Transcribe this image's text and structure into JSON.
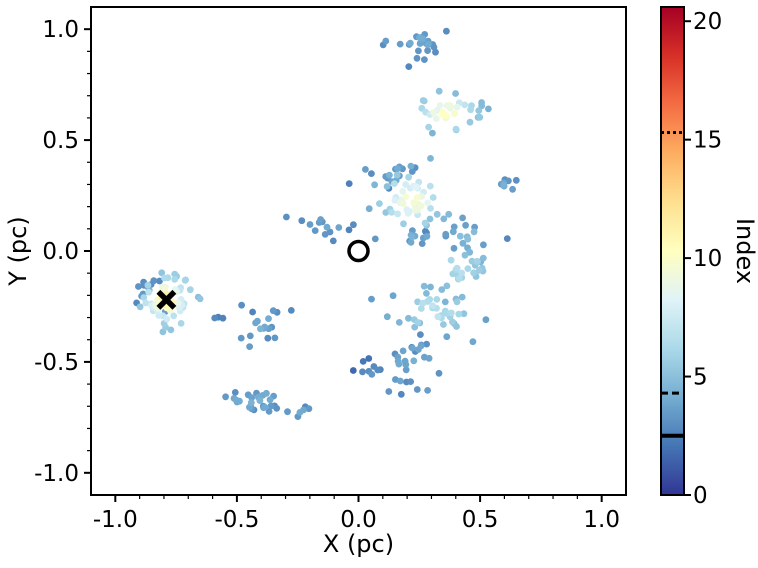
{
  "chart_data": {
    "type": "scatter",
    "xlabel": "X (pc)",
    "ylabel": "Y (pc)",
    "xlim": [
      -1.1,
      1.1
    ],
    "ylim": [
      -1.1,
      1.1
    ],
    "xticks": [
      -1.0,
      -0.5,
      0.0,
      0.5,
      1.0
    ],
    "xtick_labels": [
      "-1.0",
      "-0.5",
      "0.0",
      "0.5",
      "1.0"
    ],
    "yticks": [
      -1.0,
      -0.5,
      0.0,
      0.5,
      1.0
    ],
    "ytick_labels": [
      "-1.0",
      "-0.5",
      "0.0",
      "0.5",
      "1.0"
    ],
    "grid": false,
    "colorbar": {
      "label": "Index",
      "range": [
        0,
        20.6
      ],
      "ticks": [
        0,
        5,
        10,
        15,
        20
      ],
      "tick_labels": [
        "0",
        "5",
        "10",
        "15",
        "20"
      ],
      "colormap": "RdYlBu_r",
      "colors": [
        "#313695",
        "#4575b4",
        "#74add1",
        "#abd9e9",
        "#e0f3f8",
        "#ffffbf",
        "#fee090",
        "#fdae61",
        "#f46d43",
        "#d73027",
        "#a50026"
      ],
      "reference_lines": [
        {
          "value": 2.5,
          "style": "solid"
        },
        {
          "value": 4.3,
          "style": "dashed"
        },
        {
          "value": 15.3,
          "style": "dotted"
        }
      ]
    },
    "markers": [
      {
        "name": "circle",
        "x": 0.0,
        "y": 0.0,
        "shape": "open-circle"
      },
      {
        "name": "cross",
        "x": -0.79,
        "y": -0.22,
        "shape": "x"
      }
    ],
    "clusters": [
      {
        "cx": -0.79,
        "cy": -0.22,
        "rx": 0.07,
        "ry": 0.08,
        "n": 70,
        "peak": 11,
        "base": 5
      },
      {
        "cx": -0.87,
        "cy": -0.19,
        "rx": 0.05,
        "ry": 0.05,
        "n": 12,
        "peak": 4,
        "base": 3
      },
      {
        "cx": -0.4,
        "cy": -0.34,
        "rx": 0.07,
        "ry": 0.05,
        "n": 18,
        "peak": 4,
        "base": 3
      },
      {
        "cx": -0.42,
        "cy": -0.67,
        "rx": 0.1,
        "ry": 0.05,
        "n": 28,
        "peak": 4,
        "base": 3
      },
      {
        "cx": -0.24,
        "cy": -0.73,
        "rx": 0.04,
        "ry": 0.02,
        "n": 5,
        "peak": 4,
        "base": 3
      },
      {
        "cx": -0.58,
        "cy": -0.3,
        "rx": 0.02,
        "ry": 0.02,
        "n": 3,
        "peak": 3,
        "base": 2
      },
      {
        "cx": -0.14,
        "cy": 0.11,
        "rx": 0.06,
        "ry": 0.05,
        "n": 14,
        "peak": 4,
        "base": 3
      },
      {
        "cx": 0.22,
        "cy": 0.23,
        "rx": 0.1,
        "ry": 0.09,
        "n": 55,
        "peak": 10,
        "base": 4
      },
      {
        "cx": 0.14,
        "cy": 0.35,
        "rx": 0.07,
        "ry": 0.04,
        "n": 14,
        "peak": 4,
        "base": 3
      },
      {
        "cx": 0.23,
        "cy": 0.93,
        "rx": 0.08,
        "ry": 0.05,
        "n": 24,
        "peak": 4,
        "base": 3
      },
      {
        "cx": 0.36,
        "cy": 0.62,
        "rx": 0.1,
        "ry": 0.07,
        "n": 38,
        "peak": 10,
        "base": 4
      },
      {
        "cx": 0.6,
        "cy": 0.29,
        "rx": 0.04,
        "ry": 0.03,
        "n": 8,
        "peak": 4,
        "base": 3
      },
      {
        "cx": 0.44,
        "cy": 0.07,
        "rx": 0.07,
        "ry": 0.05,
        "n": 16,
        "peak": 5,
        "base": 3
      },
      {
        "cx": 0.42,
        "cy": -0.08,
        "rx": 0.08,
        "ry": 0.07,
        "n": 26,
        "peak": 7,
        "base": 4
      },
      {
        "cx": 0.31,
        "cy": -0.27,
        "rx": 0.12,
        "ry": 0.07,
        "n": 42,
        "peak": 7,
        "base": 4
      },
      {
        "cx": 0.21,
        "cy": -0.52,
        "rx": 0.1,
        "ry": 0.08,
        "n": 28,
        "peak": 4,
        "base": 3
      },
      {
        "cx": 0.04,
        "cy": -0.52,
        "rx": 0.04,
        "ry": 0.04,
        "n": 8,
        "peak": 3,
        "base": 2
      },
      {
        "cx": 0.22,
        "cy": 0.08,
        "rx": 0.05,
        "ry": 0.04,
        "n": 10,
        "peak": 4,
        "base": 3
      }
    ]
  }
}
